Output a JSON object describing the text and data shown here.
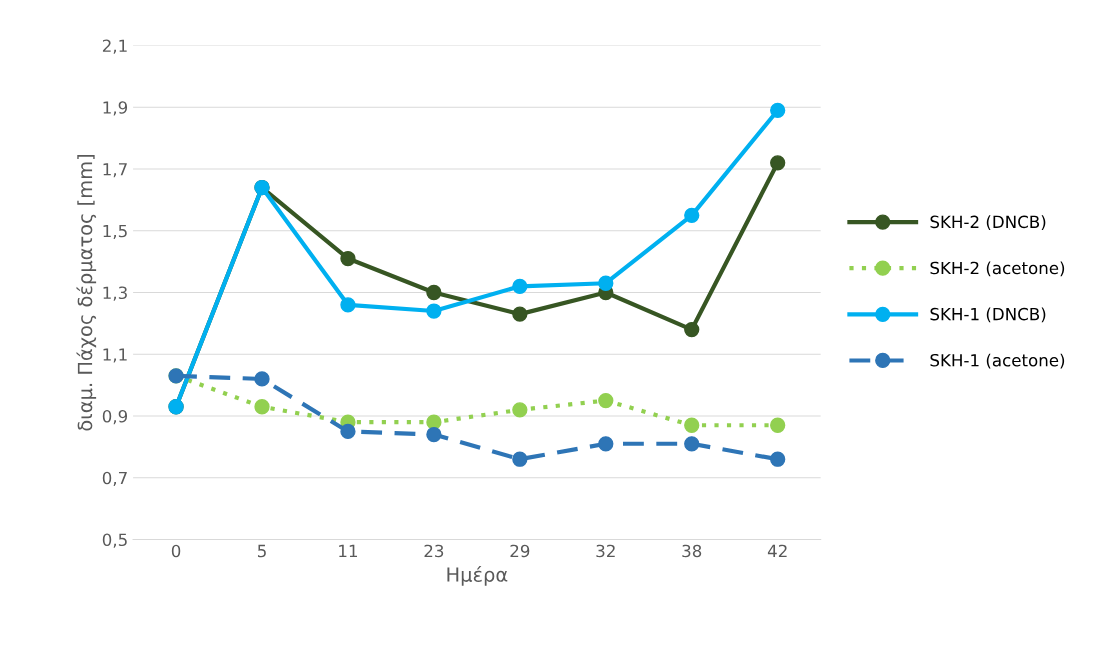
{
  "chart_data": {
    "type": "line",
    "xlabel": "Ημέρα",
    "ylabel": "διαμ. Πάχος δέρματος [mm]",
    "categories": [
      "0",
      "5",
      "11",
      "23",
      "29",
      "32",
      "38",
      "42"
    ],
    "series": [
      {
        "name": "SKH-2 (DNCB)",
        "color": "#375623",
        "line_style": "solid",
        "marker": "circle",
        "values": [
          0.93,
          1.64,
          1.41,
          1.3,
          1.23,
          1.3,
          1.18,
          1.72
        ]
      },
      {
        "name": "SKH-2 (acetone)",
        "color": "#92d050",
        "line_style": "dotted",
        "marker": "circle",
        "values": [
          1.03,
          0.93,
          0.88,
          0.88,
          0.92,
          0.95,
          0.87,
          0.87
        ]
      },
      {
        "name": "SKH-1 (DNCB)",
        "color": "#00b0f0",
        "line_style": "solid",
        "marker": "circle",
        "values": [
          0.93,
          1.64,
          1.26,
          1.24,
          1.32,
          1.33,
          1.55,
          1.89
        ]
      },
      {
        "name": "SKH-1 (acetone)",
        "color": "#2e75b6",
        "line_style": "dashed",
        "marker": "circle",
        "values": [
          1.03,
          1.02,
          0.85,
          0.84,
          0.76,
          0.81,
          0.81,
          0.76
        ]
      }
    ],
    "ylim": [
      0.5,
      2.1
    ],
    "yticks": [
      {
        "value": 0.5,
        "label": "0,5"
      },
      {
        "value": 0.7,
        "label": "0,7"
      },
      {
        "value": 0.9,
        "label": "0,9"
      },
      {
        "value": 1.1,
        "label": "1,1"
      },
      {
        "value": 1.3,
        "label": "1,3"
      },
      {
        "value": 1.5,
        "label": "1,5"
      },
      {
        "value": 1.7,
        "label": "1,7"
      },
      {
        "value": 1.9,
        "label": "1,9"
      },
      {
        "value": 2.1,
        "label": "2,1"
      }
    ],
    "grid": "y",
    "legend": "right"
  }
}
